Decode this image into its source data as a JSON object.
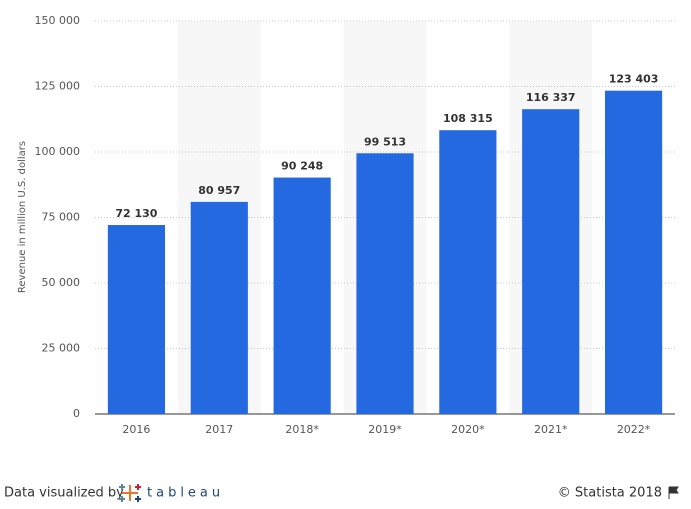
{
  "chart_data": {
    "type": "bar",
    "y_label": "Revenue in million U.S. dollars",
    "categories": [
      "2016",
      "2017",
      "2018*",
      "2019*",
      "2020*",
      "2021*",
      "2022*"
    ],
    "values": [
      72130,
      80957,
      90248,
      99513,
      108315,
      116337,
      123403
    ],
    "value_labels": [
      "72 130",
      "80 957",
      "90 248",
      "99 513",
      "108 315",
      "116 337",
      "123 403"
    ],
    "color": "#2469e0",
    "ylim": [
      0,
      150000
    ],
    "yticks": [
      0,
      {
        "value": 25000,
        "label": "25 000"
      },
      {
        "value": 50000,
        "label": "50 000"
      },
      {
        "value": 75000,
        "label": "75 000"
      },
      {
        "value": 100000,
        "label": "100 000"
      },
      {
        "value": 125000,
        "label": "125 000"
      },
      {
        "value": 150000,
        "label": "150 000"
      }
    ],
    "grid": true
  },
  "footer": {
    "credit": "Data visualized by",
    "logo": "tableau",
    "source": "© Statista 2018"
  }
}
